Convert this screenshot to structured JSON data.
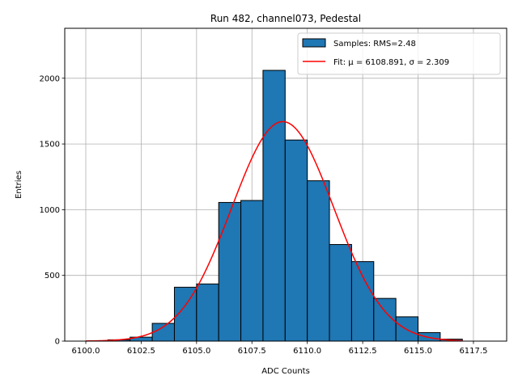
{
  "chart_data": {
    "type": "bar",
    "title": "Run 482, channel073, Pedestal",
    "xlabel": "ADC Counts",
    "ylabel": "Entries",
    "xlim": [
      6099.05,
      6119.0
    ],
    "ylim": [
      0,
      2380
    ],
    "xticks": [
      6100.0,
      6102.5,
      6105.0,
      6107.5,
      6110.0,
      6112.5,
      6115.0,
      6117.5
    ],
    "xtick_labels": [
      "6100.0",
      "6102.5",
      "6105.0",
      "6107.5",
      "6110.0",
      "6112.5",
      "6115.0",
      "6117.5"
    ],
    "yticks": [
      0,
      500,
      1000,
      1500,
      2000
    ],
    "ytick_labels": [
      "0",
      "500",
      "1000",
      "1500",
      "2000"
    ],
    "grid": true,
    "legend_position": "top-right",
    "colors": {
      "bars": "#1f77b4",
      "bar_edge": "#000000",
      "fit": "#ff0000",
      "grid": "#b0b0b0"
    },
    "series": [
      {
        "name": "Samples: RMS=2.48",
        "kind": "histogram",
        "bin_edges": [
          6100,
          6101,
          6102,
          6103,
          6104,
          6105,
          6106,
          6107,
          6108,
          6109,
          6110,
          6111,
          6112,
          6113,
          6114,
          6115,
          6116,
          6117,
          6118,
          6119
        ],
        "values": [
          0,
          10,
          30,
          135,
          410,
          435,
          1055,
          1070,
          2060,
          1530,
          1220,
          735,
          605,
          325,
          185,
          65,
          15,
          0,
          0
        ]
      },
      {
        "name": "Fit: μ = 6108.891, σ = 2.309",
        "kind": "gaussian",
        "mu": 6108.891,
        "sigma": 2.309,
        "amplitude": 1670,
        "x_range": [
          6100,
          6117
        ]
      }
    ]
  }
}
